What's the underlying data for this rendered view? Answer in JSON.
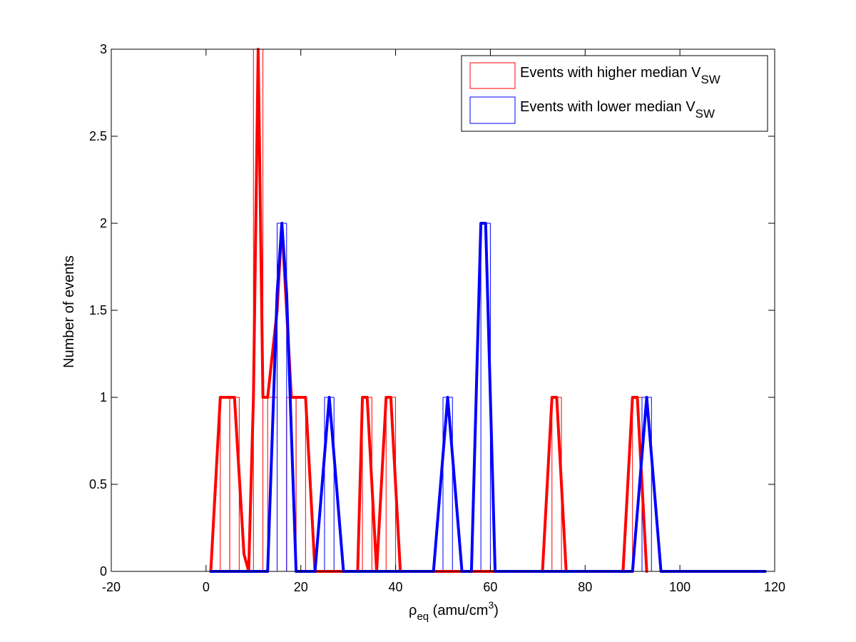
{
  "chart_data": {
    "type": "bar",
    "title": "",
    "xlabel": {
      "base": "ρ",
      "sub": "eq",
      "unit_pre": " (amu/cm",
      "sup": "3",
      "unit_post": ")"
    },
    "ylabel": "Number of events",
    "xlim": [
      -20,
      120
    ],
    "ylim": [
      0,
      3
    ],
    "xticks": [
      -20,
      0,
      20,
      40,
      60,
      80,
      100,
      120
    ],
    "yticks": [
      0,
      0.5,
      1,
      1.5,
      2,
      2.5,
      3
    ],
    "ytick_labels": [
      "0",
      "0.5",
      "1",
      "1.5",
      "2",
      "2.5",
      "3"
    ],
    "grid": false,
    "legend_position": "top-right",
    "bin_width": 2,
    "series": [
      {
        "name_main": "Events with higher median V",
        "name_sub": "SW",
        "color": "#ff0000",
        "bins": [
          {
            "x": 4,
            "count": 1
          },
          {
            "x": 6,
            "count": 1
          },
          {
            "x": 11,
            "count": 3
          },
          {
            "x": 14,
            "count": 1
          },
          {
            "x": 18,
            "count": 1
          },
          {
            "x": 20,
            "count": 1
          },
          {
            "x": 34,
            "count": 1
          },
          {
            "x": 39,
            "count": 1
          },
          {
            "x": 74,
            "count": 1
          },
          {
            "x": 91,
            "count": 1
          }
        ],
        "line": [
          [
            1,
            0
          ],
          [
            3,
            1
          ],
          [
            6,
            1
          ],
          [
            8,
            0.1
          ],
          [
            9,
            0
          ],
          [
            10,
            1
          ],
          [
            11,
            3
          ],
          [
            12,
            1
          ],
          [
            13,
            1
          ],
          [
            15,
            1.5
          ],
          [
            16,
            2
          ],
          [
            17,
            1.5
          ],
          [
            18,
            1
          ],
          [
            21,
            1
          ],
          [
            23,
            0
          ],
          [
            32,
            0
          ],
          [
            33,
            1
          ],
          [
            34,
            1
          ],
          [
            36,
            0
          ],
          [
            38,
            1
          ],
          [
            39,
            1
          ],
          [
            41,
            0
          ],
          [
            71,
            0
          ],
          [
            73,
            1
          ],
          [
            74,
            1
          ],
          [
            76,
            0
          ],
          [
            88,
            0
          ],
          [
            90,
            1
          ],
          [
            91,
            1
          ],
          [
            93,
            0
          ]
        ]
      },
      {
        "name_main": "Events with lower median V",
        "name_sub": "SW",
        "color": "#0000ff",
        "bins": [
          {
            "x": 16,
            "count": 2
          },
          {
            "x": 26,
            "count": 1
          },
          {
            "x": 51,
            "count": 1
          },
          {
            "x": 59,
            "count": 2
          },
          {
            "x": 93,
            "count": 1
          }
        ],
        "line": [
          [
            1,
            0
          ],
          [
            13,
            0
          ],
          [
            15,
            1.6
          ],
          [
            16,
            2
          ],
          [
            17,
            1.6
          ],
          [
            19,
            0
          ],
          [
            23,
            0
          ],
          [
            26,
            1
          ],
          [
            29,
            0
          ],
          [
            48,
            0
          ],
          [
            51,
            1
          ],
          [
            54,
            0
          ],
          [
            56,
            0
          ],
          [
            58,
            2
          ],
          [
            59,
            2
          ],
          [
            61,
            0
          ],
          [
            90,
            0
          ],
          [
            93,
            1
          ],
          [
            96,
            0
          ],
          [
            118,
            0
          ]
        ]
      }
    ]
  }
}
